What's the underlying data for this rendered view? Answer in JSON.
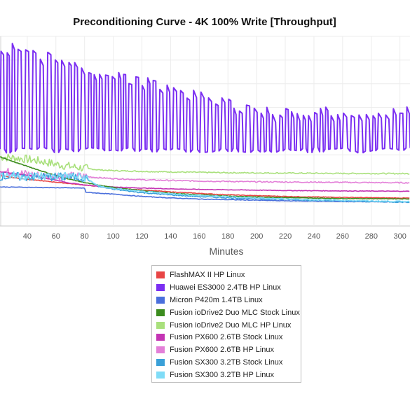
{
  "chart_data": {
    "type": "line",
    "title": "Preconditioning Curve - 4K 100% Write [Throughput]",
    "xlabel": "Minutes",
    "ylabel": "",
    "x_ticks": [
      40,
      60,
      80,
      100,
      120,
      140,
      160,
      180,
      200,
      220,
      240,
      260,
      280,
      300
    ],
    "xlim": [
      21,
      307
    ],
    "ylim": [
      0,
      100
    ],
    "grid": true,
    "legend_position": "bottom-center",
    "series": [
      {
        "name": "FlashMAX II HP Linux",
        "color": "#e84545",
        "style": "drop",
        "x": [
          21,
          24,
          26,
          28,
          30,
          32,
          34,
          36,
          38,
          40,
          44,
          48,
          52,
          56,
          60,
          64,
          68,
          72,
          76,
          80,
          84,
          88,
          92,
          96,
          100,
          110,
          120,
          130,
          140,
          150,
          160,
          170,
          180,
          190,
          200,
          210,
          220,
          240,
          260,
          280,
          307
        ],
        "y": [
          26.5,
          26.3,
          26.0,
          25.8,
          25.6,
          25.4,
          25.2,
          25.0,
          24.8,
          24.6,
          24.3,
          24.0,
          23.7,
          23.4,
          23.1,
          22.8,
          22.5,
          22.2,
          21.9,
          21.6,
          21.3,
          21.0,
          20.7,
          20.4,
          20.1,
          19.5,
          19.0,
          18.5,
          18.0,
          17.6,
          17.2,
          16.8,
          16.5,
          16.2,
          16.0,
          15.8,
          15.6,
          15.3,
          15.1,
          14.9,
          14.7
        ]
      },
      {
        "name": "Huawei ES3000 2.4TB HP Linux",
        "color": "#7b2ff2",
        "style": "saw",
        "x_start": 21,
        "x_end": 307,
        "period": 4.2,
        "high_start": 95,
        "high_end": 61,
        "low": 40
      },
      {
        "name": "Micron P420m 1.4TB Linux",
        "color": "#4a6fdc",
        "style": "drop",
        "x": [
          21,
          30,
          40,
          50,
          60,
          70,
          80,
          81,
          90,
          100,
          120,
          140,
          160,
          180,
          200,
          220,
          240,
          260,
          280,
          307
        ],
        "y": [
          20.6,
          20.5,
          20.4,
          20.3,
          20.2,
          20.1,
          20.0,
          17.8,
          17.3,
          16.8,
          15.6,
          14.8,
          14.2,
          13.9,
          13.6,
          13.3,
          13.1,
          12.9,
          12.8,
          12.7
        ]
      },
      {
        "name": "Fusion ioDrive2 Duo MLC Stock Linux",
        "color": "#3c8c1e",
        "style": "drop",
        "x": [
          21,
          30,
          40,
          50,
          60,
          70,
          80,
          90,
          100,
          120,
          140,
          160,
          180,
          200,
          220,
          240,
          260,
          280,
          307
        ],
        "y": [
          36.5,
          34.0,
          31.5,
          29.0,
          26.6,
          24.6,
          22.9,
          21.5,
          20.3,
          18.6,
          17.3,
          16.4,
          15.8,
          15.3,
          15.0,
          14.7,
          14.5,
          14.4,
          14.3
        ]
      },
      {
        "name": "Fusion ioDrive2 Duo MLC HP Linux",
        "color": "#a9e07c",
        "style": "noisy",
        "x": [
          21,
          30,
          40,
          50,
          60,
          70,
          80,
          90,
          100,
          120,
          140,
          160,
          180,
          200,
          220,
          240,
          260,
          280,
          307
        ],
        "y": [
          36.5,
          36.0,
          35.2,
          34.1,
          32.6,
          31.4,
          30.4,
          29.6,
          29.2,
          28.8,
          28.5,
          28.3,
          28.1,
          28.0,
          27.9,
          27.8,
          27.7,
          27.7,
          27.6
        ]
      },
      {
        "name": "Fusion PX600 2.6TB Stock Linux",
        "color": "#c434b4",
        "style": "drop",
        "x": [
          21,
          30,
          40,
          50,
          60,
          70,
          80,
          90,
          100,
          120,
          140,
          160,
          180,
          200,
          220,
          240,
          260,
          280,
          307
        ],
        "y": [
          28.5,
          27.8,
          26.8,
          25.6,
          24.2,
          22.6,
          21.6,
          21.0,
          20.6,
          20.0,
          19.6,
          19.3,
          19.1,
          18.9,
          18.7,
          18.6,
          18.5,
          18.4,
          18.3
        ]
      },
      {
        "name": "Fusion PX600 2.6TB HP Linux",
        "color": "#e37fd8",
        "style": "noisy",
        "x": [
          21,
          30,
          40,
          50,
          60,
          70,
          80,
          90,
          100,
          120,
          140,
          160,
          180,
          200,
          220,
          240,
          260,
          280,
          307
        ],
        "y": [
          28.8,
          28.2,
          27.4,
          26.6,
          26.4,
          26.3,
          26.1,
          25.5,
          25.0,
          24.4,
          24.0,
          23.7,
          23.5,
          23.3,
          23.2,
          23.1,
          23.0,
          22.9,
          22.8
        ]
      },
      {
        "name": "Fusion SX300 3.2TB Stock Linux",
        "color": "#3aa0d8",
        "style": "noisy",
        "x": [
          21,
          30,
          40,
          50,
          60,
          70,
          80,
          90,
          100,
          120,
          140,
          160,
          180,
          200,
          220,
          240,
          260,
          280,
          307
        ],
        "y": [
          26.2,
          26.0,
          25.9,
          25.9,
          25.9,
          25.7,
          25.5,
          20.8,
          19.4,
          17.6,
          16.4,
          15.5,
          14.9,
          14.4,
          14.0,
          13.6,
          13.2,
          12.9,
          12.6
        ]
      },
      {
        "name": "Fusion SX300 3.2TB HP Linux",
        "color": "#7fdcf7",
        "style": "noisy",
        "x": [
          21,
          30,
          40,
          50,
          60,
          70,
          80,
          90,
          100,
          120,
          140,
          160,
          180,
          200,
          220,
          240,
          260,
          280,
          307
        ],
        "y": [
          27.0,
          26.6,
          26.2,
          26.4,
          26.3,
          26.4,
          25.6,
          21.0,
          19.8,
          18.2,
          17.0,
          16.1,
          15.4,
          14.8,
          14.3,
          13.9,
          13.5,
          13.2,
          12.9
        ]
      }
    ]
  }
}
